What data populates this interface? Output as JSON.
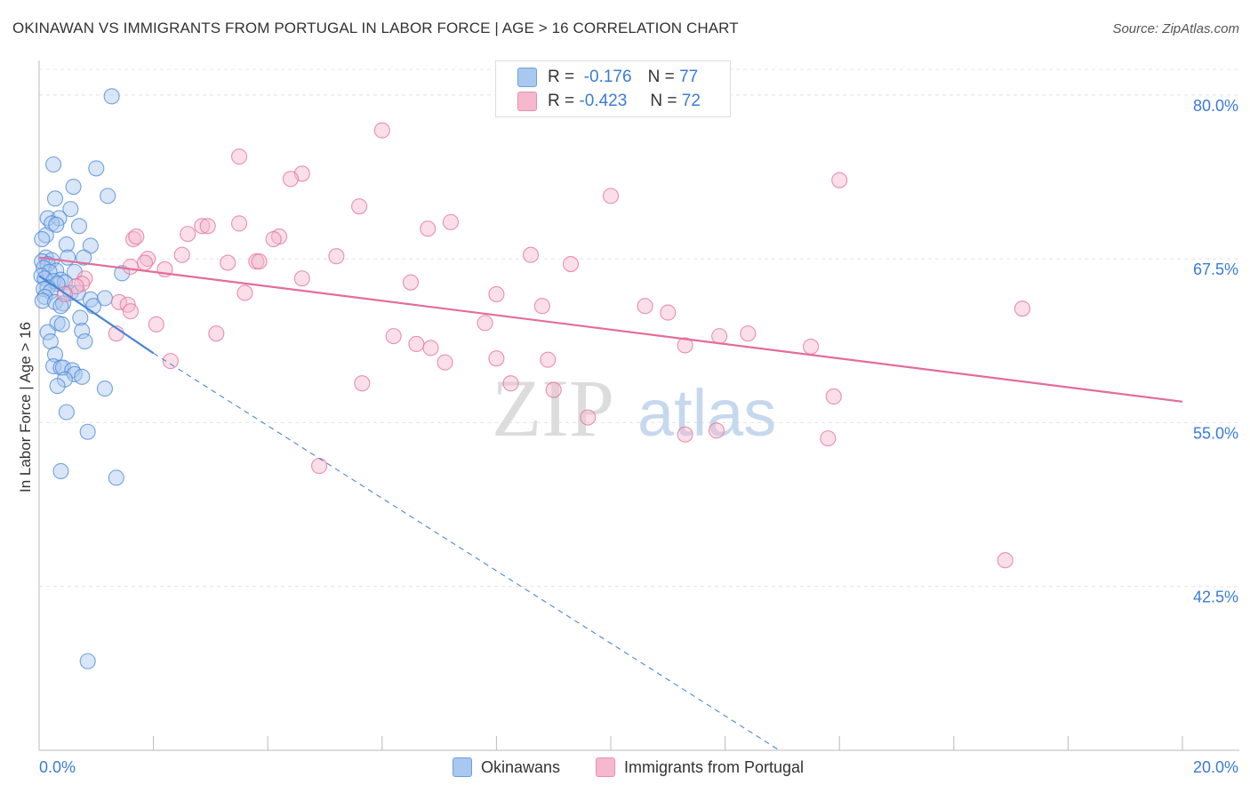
{
  "title": "OKINAWAN VS IMMIGRANTS FROM PORTUGAL IN LABOR FORCE | AGE > 16 CORRELATION CHART",
  "source": "Source: ZipAtlas.com",
  "watermark": {
    "zip": "ZIP",
    "atlas": "atlas"
  },
  "legend": {
    "rows": [
      {
        "r_label": "R =",
        "r_value": "-0.176",
        "n_label": "N =",
        "n_value": "77"
      },
      {
        "r_label": "R =",
        "r_value": "-0.423",
        "n_label": "N =",
        "n_value": "72"
      }
    ]
  },
  "bottom_legend": [
    "Okinawans",
    "Immigrants from Portugal"
  ],
  "colors": {
    "blue": "#4a86d4",
    "blue_fill": "#a8c8f0",
    "pink": "#e36d98",
    "pink_fill": "#f5b8cc",
    "tick_label": "#3a7bd5",
    "grid": "#e4e4e4"
  },
  "chart_data": {
    "type": "scatter",
    "title": "OKINAWAN VS IMMIGRANTS FROM PORTUGAL IN LABOR FORCE | AGE > 16 CORRELATION CHART",
    "xlabel": "",
    "ylabel": "In Labor Force | Age > 16",
    "xlim": [
      0,
      20
    ],
    "ylim": [
      30,
      82.5
    ],
    "x_tick_labels": [
      "0.0%",
      "20.0%"
    ],
    "y_ticks": [
      42.5,
      55.0,
      67.5,
      80.0
    ],
    "y_tick_labels": [
      "42.5%",
      "55.0%",
      "67.5%",
      "80.0%"
    ],
    "grid": true,
    "legend_position": "top-center",
    "series": [
      {
        "name": "Okinawans",
        "color": "#4a86d4",
        "trend": {
          "x0": 0,
          "y0": 66.2,
          "x1": 2.0,
          "y1": 60.3,
          "dashed_to_x": 12.95,
          "dashed_to_y": 30.0
        },
        "points": [
          [
            1.27,
            79.9
          ],
          [
            0.25,
            74.7
          ],
          [
            1.0,
            74.4
          ],
          [
            0.6,
            73.0
          ],
          [
            1.2,
            72.3
          ],
          [
            0.28,
            72.1
          ],
          [
            0.55,
            71.3
          ],
          [
            0.15,
            70.6
          ],
          [
            0.35,
            70.6
          ],
          [
            0.22,
            70.2
          ],
          [
            0.3,
            70.1
          ],
          [
            0.7,
            70.0
          ],
          [
            0.12,
            69.3
          ],
          [
            0.05,
            69.0
          ],
          [
            0.9,
            68.5
          ],
          [
            0.48,
            68.6
          ],
          [
            0.78,
            67.6
          ],
          [
            0.12,
            67.6
          ],
          [
            0.22,
            67.4
          ],
          [
            0.05,
            67.3
          ],
          [
            0.15,
            67.1
          ],
          [
            0.5,
            67.6
          ],
          [
            0.08,
            66.8
          ],
          [
            0.3,
            66.6
          ],
          [
            0.62,
            66.5
          ],
          [
            0.18,
            66.5
          ],
          [
            0.04,
            66.2
          ],
          [
            0.1,
            66.0
          ],
          [
            0.38,
            65.9
          ],
          [
            0.25,
            65.8
          ],
          [
            0.45,
            65.7
          ],
          [
            0.32,
            65.6
          ],
          [
            0.15,
            65.3
          ],
          [
            0.08,
            65.2
          ],
          [
            0.2,
            65.0
          ],
          [
            0.55,
            64.9
          ],
          [
            0.68,
            64.9
          ],
          [
            0.1,
            64.6
          ],
          [
            0.06,
            64.3
          ],
          [
            0.28,
            64.2
          ],
          [
            0.42,
            64.1
          ],
          [
            0.38,
            63.9
          ],
          [
            0.9,
            64.4
          ],
          [
            1.15,
            64.5
          ],
          [
            1.45,
            66.4
          ],
          [
            0.95,
            63.9
          ],
          [
            0.72,
            63.0
          ],
          [
            0.32,
            62.6
          ],
          [
            0.4,
            62.5
          ],
          [
            0.75,
            62.0
          ],
          [
            0.15,
            61.9
          ],
          [
            0.8,
            61.2
          ],
          [
            0.2,
            61.2
          ],
          [
            0.28,
            60.2
          ],
          [
            0.25,
            59.3
          ],
          [
            0.38,
            59.2
          ],
          [
            0.42,
            59.2
          ],
          [
            0.58,
            59.0
          ],
          [
            0.62,
            58.7
          ],
          [
            0.75,
            58.5
          ],
          [
            0.45,
            58.3
          ],
          [
            0.32,
            57.8
          ],
          [
            1.15,
            57.6
          ],
          [
            0.48,
            55.8
          ],
          [
            0.85,
            54.3
          ],
          [
            0.38,
            51.3
          ],
          [
            1.35,
            50.8
          ],
          [
            0.85,
            36.8
          ]
        ]
      },
      {
        "name": "Immigrants from Portugal",
        "color": "#e36d98",
        "trend": {
          "x0": 0,
          "y0": 67.6,
          "x1": 20,
          "y1": 56.6
        },
        "points": [
          [
            6.0,
            77.3
          ],
          [
            3.5,
            75.3
          ],
          [
            4.6,
            74.0
          ],
          [
            4.4,
            73.6
          ],
          [
            14.0,
            73.5
          ],
          [
            10.0,
            72.3
          ],
          [
            5.6,
            71.5
          ],
          [
            7.2,
            70.3
          ],
          [
            3.5,
            70.2
          ],
          [
            2.85,
            70.0
          ],
          [
            2.95,
            70.0
          ],
          [
            6.8,
            69.8
          ],
          [
            2.6,
            69.4
          ],
          [
            4.2,
            69.2
          ],
          [
            1.65,
            69.0
          ],
          [
            1.7,
            69.2
          ],
          [
            4.1,
            69.0
          ],
          [
            8.6,
            67.8
          ],
          [
            5.2,
            67.7
          ],
          [
            2.5,
            67.8
          ],
          [
            1.9,
            67.5
          ],
          [
            1.85,
            67.2
          ],
          [
            3.3,
            67.2
          ],
          [
            3.8,
            67.3
          ],
          [
            3.85,
            67.3
          ],
          [
            9.3,
            67.1
          ],
          [
            2.2,
            66.7
          ],
          [
            1.6,
            66.9
          ],
          [
            0.8,
            66.0
          ],
          [
            4.6,
            66.0
          ],
          [
            6.5,
            65.7
          ],
          [
            0.75,
            65.6
          ],
          [
            0.65,
            65.4
          ],
          [
            3.6,
            64.9
          ],
          [
            8.0,
            64.8
          ],
          [
            0.45,
            64.8
          ],
          [
            1.4,
            64.2
          ],
          [
            1.55,
            64.0
          ],
          [
            1.6,
            63.5
          ],
          [
            8.8,
            63.9
          ],
          [
            10.6,
            63.9
          ],
          [
            11.0,
            63.4
          ],
          [
            17.2,
            63.7
          ],
          [
            7.8,
            62.6
          ],
          [
            2.05,
            62.5
          ],
          [
            3.1,
            61.8
          ],
          [
            1.35,
            61.8
          ],
          [
            6.2,
            61.6
          ],
          [
            11.9,
            61.6
          ],
          [
            12.4,
            61.8
          ],
          [
            6.6,
            61.0
          ],
          [
            6.85,
            60.7
          ],
          [
            11.3,
            60.9
          ],
          [
            13.5,
            60.8
          ],
          [
            2.3,
            59.7
          ],
          [
            7.1,
            59.6
          ],
          [
            8.0,
            59.9
          ],
          [
            8.9,
            59.8
          ],
          [
            5.65,
            58.0
          ],
          [
            8.25,
            58.0
          ],
          [
            9.0,
            57.5
          ],
          [
            13.9,
            57.0
          ],
          [
            9.6,
            55.4
          ],
          [
            11.3,
            54.1
          ],
          [
            11.85,
            54.4
          ],
          [
            13.8,
            53.8
          ],
          [
            4.9,
            51.7
          ],
          [
            16.9,
            44.5
          ]
        ]
      }
    ]
  }
}
